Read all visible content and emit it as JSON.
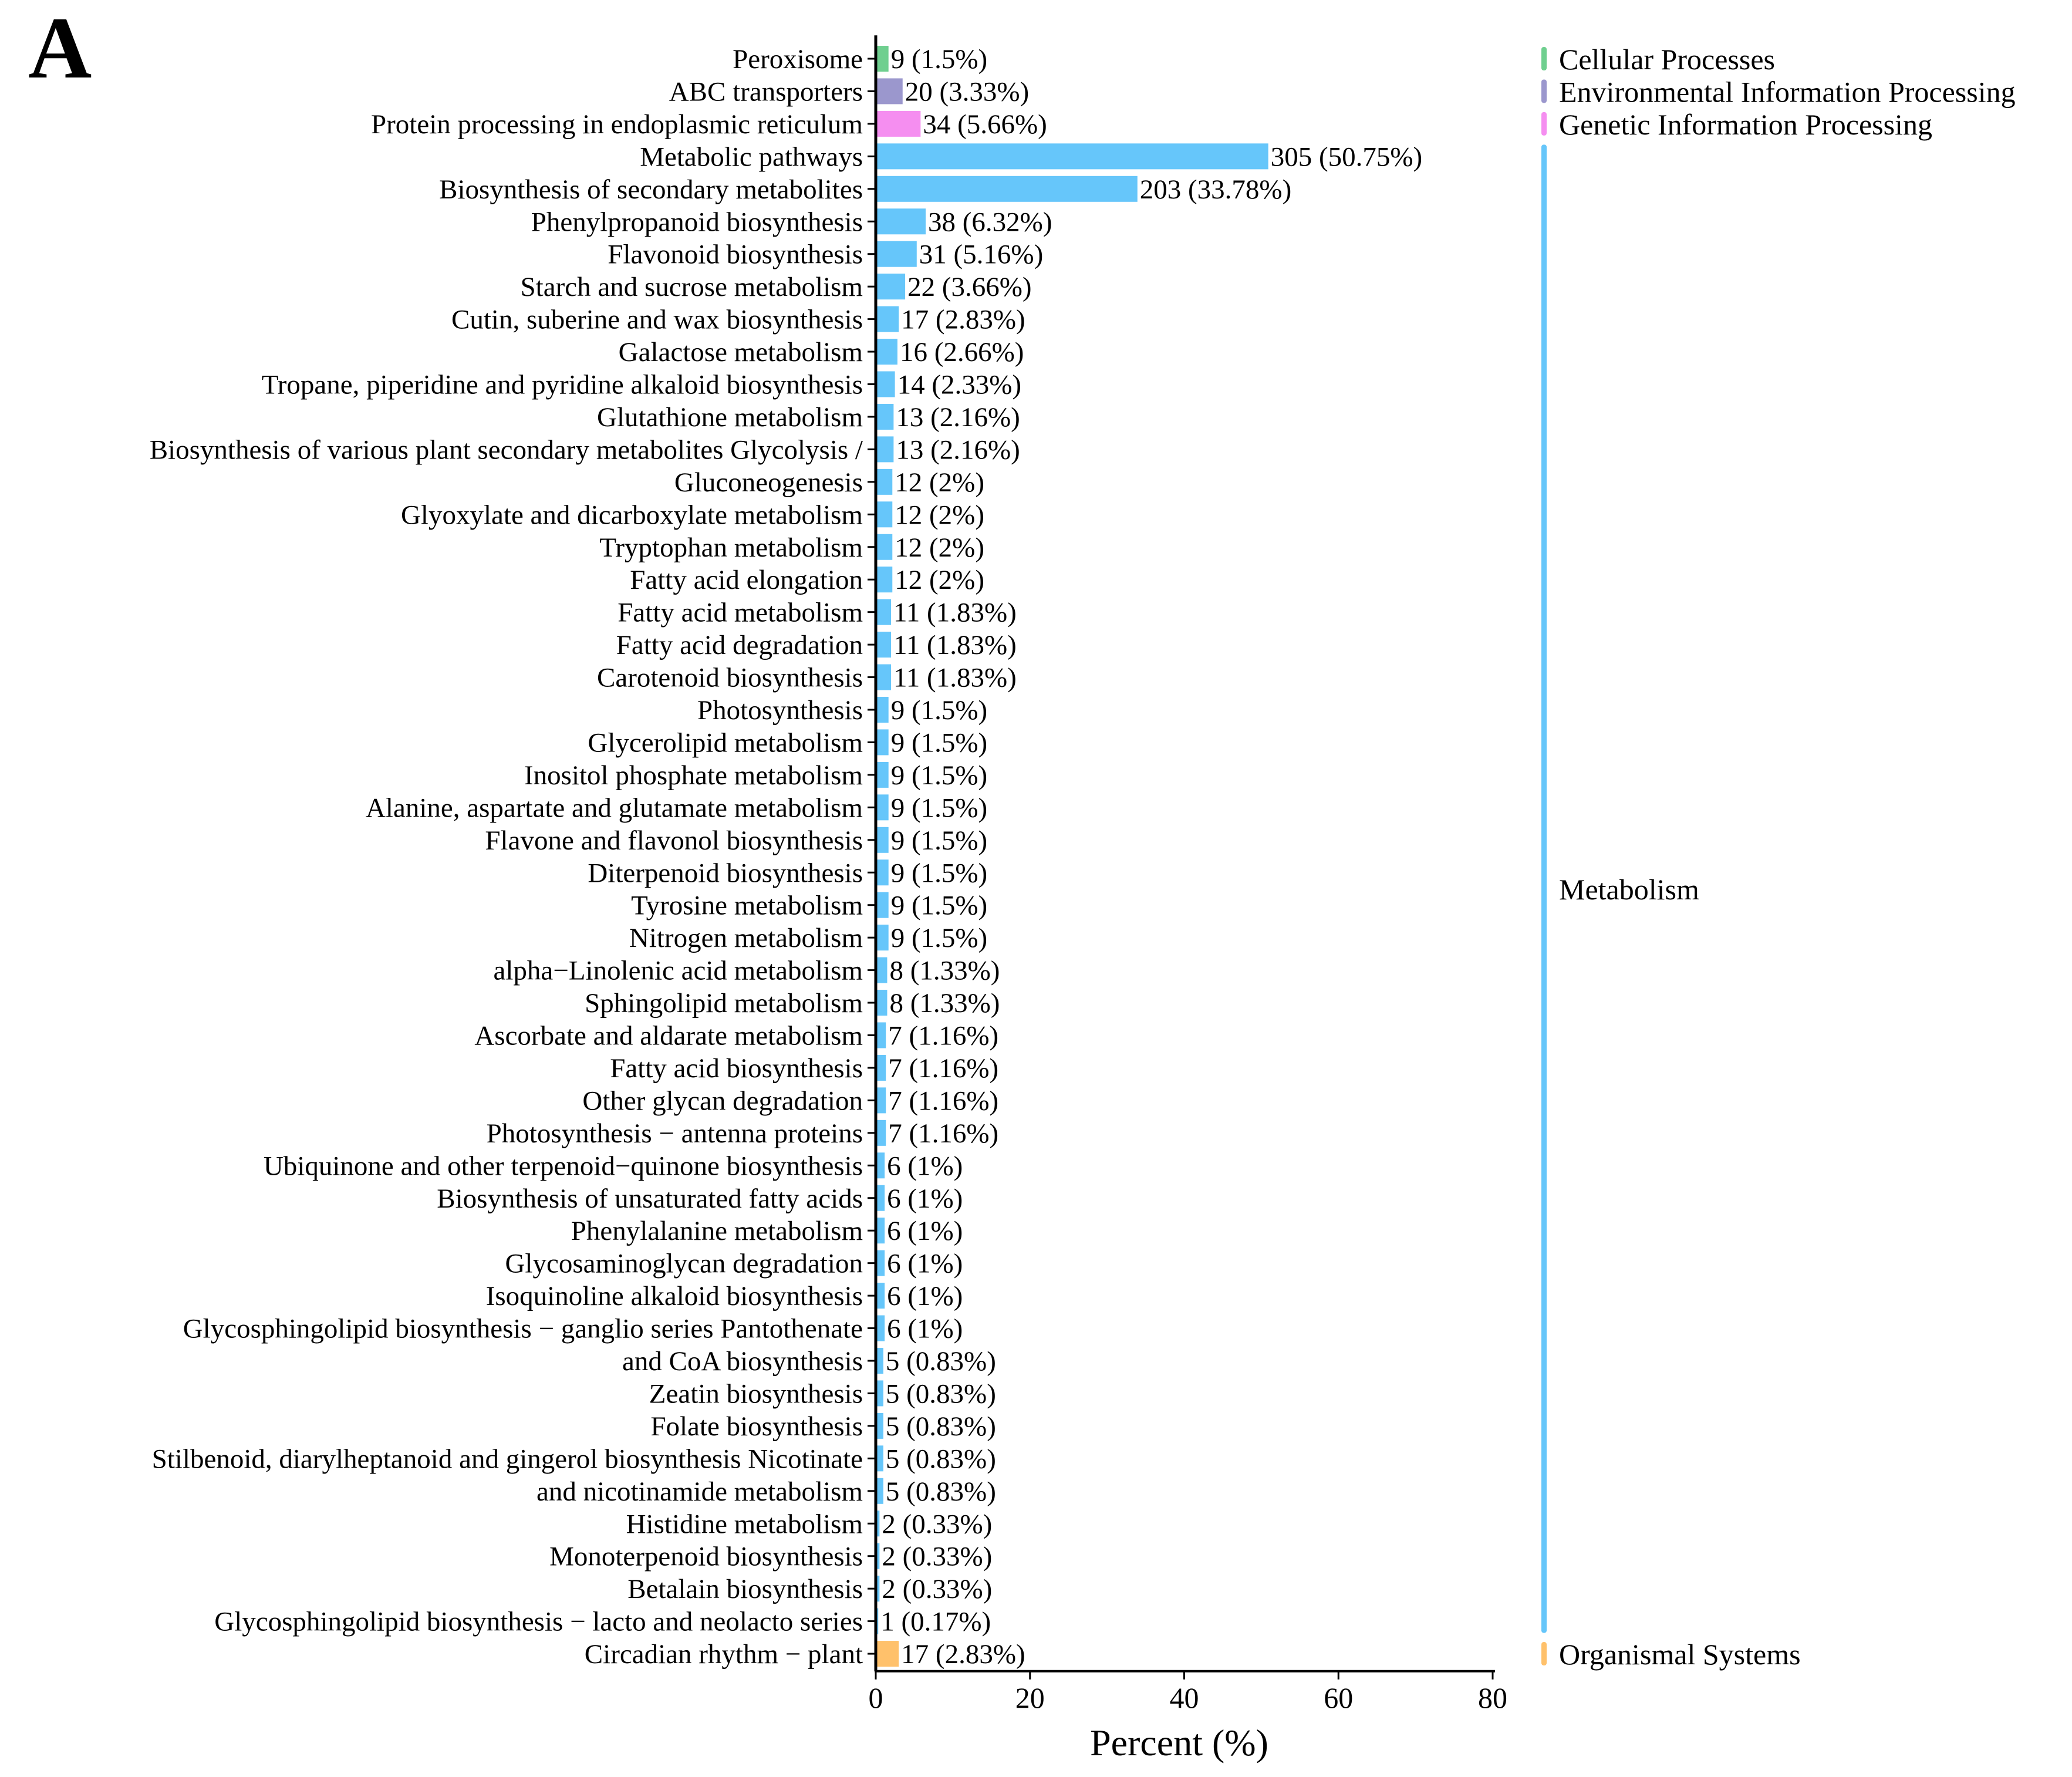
{
  "panel_label": "A",
  "chart_data": {
    "type": "bar",
    "orientation": "horizontal",
    "title": "",
    "xlabel": "Percent (%)",
    "ylabel": "",
    "xlim": [
      0,
      80
    ],
    "xticks": [
      "0",
      "20",
      "40",
      "60",
      "80"
    ],
    "grid": false,
    "legend_position": "right",
    "groups": [
      {
        "name": "Cellular Processes",
        "color": "#6fcf8f"
      },
      {
        "name": "Environmental Information Processing",
        "color": "#9b97cd"
      },
      {
        "name": "Genetic Information Processing",
        "color": "#f58ef0"
      },
      {
        "name": "Metabolism",
        "color": "#66c6fa"
      },
      {
        "name": "Organismal Systems",
        "color": "#ffc16b"
      }
    ],
    "bars": [
      {
        "label": "Peroxisome",
        "percent": 1.5,
        "value_label": "9 (1.5%)",
        "group": 0
      },
      {
        "label": "ABC transporters",
        "percent": 3.33,
        "value_label": "20 (3.33%)",
        "group": 1
      },
      {
        "label": "Protein processing in endoplasmic reticulum",
        "percent": 5.66,
        "value_label": "34 (5.66%)",
        "group": 2
      },
      {
        "label": "Metabolic pathways",
        "percent": 50.75,
        "value_label": "305 (50.75%)",
        "group": 3
      },
      {
        "label": "Biosynthesis of secondary metabolites",
        "percent": 33.78,
        "value_label": "203 (33.78%)",
        "group": 3
      },
      {
        "label": "Phenylpropanoid biosynthesis",
        "percent": 6.32,
        "value_label": "38 (6.32%)",
        "group": 3
      },
      {
        "label": "Flavonoid biosynthesis",
        "percent": 5.16,
        "value_label": "31 (5.16%)",
        "group": 3
      },
      {
        "label": "Starch and sucrose metabolism",
        "percent": 3.66,
        "value_label": "22 (3.66%)",
        "group": 3
      },
      {
        "label": "Cutin, suberine and wax biosynthesis",
        "percent": 2.83,
        "value_label": "17 (2.83%)",
        "group": 3
      },
      {
        "label": "Galactose metabolism",
        "percent": 2.66,
        "value_label": "16 (2.66%)",
        "group": 3
      },
      {
        "label": "Tropane, piperidine and pyridine alkaloid biosynthesis",
        "percent": 2.33,
        "value_label": "14  (2.33%)",
        "group": 3
      },
      {
        "label": "Glutathione metabolism",
        "percent": 2.16,
        "value_label": "13  (2.16%)",
        "group": 3
      },
      {
        "label": "Biosynthesis of various plant secondary metabolites Glycolysis /",
        "percent": 2.16,
        "value_label": "13 (2.16%)",
        "group": 3
      },
      {
        "label": "Gluconeogenesis",
        "percent": 2,
        "value_label": "12 (2%)",
        "group": 3
      },
      {
        "label": "Glyoxylate and dicarboxylate metabolism",
        "percent": 2,
        "value_label": "12 (2%)",
        "group": 3
      },
      {
        "label": "Tryptophan metabolism",
        "percent": 2,
        "value_label": "12 (2%)",
        "group": 3
      },
      {
        "label": "Fatty acid elongation",
        "percent": 2,
        "value_label": "12 (2%)",
        "group": 3
      },
      {
        "label": "Fatty acid metabolism",
        "percent": 1.83,
        "value_label": "11 (1.83%)",
        "group": 3
      },
      {
        "label": "Fatty acid degradation",
        "percent": 1.83,
        "value_label": "11 (1.83%)",
        "group": 3
      },
      {
        "label": "Carotenoid biosynthesis",
        "percent": 1.83,
        "value_label": "11 (1.83%)",
        "group": 3
      },
      {
        "label": "Photosynthesis",
        "percent": 1.5,
        "value_label": "9 (1.5%)",
        "group": 3
      },
      {
        "label": "Glycerolipid metabolism",
        "percent": 1.5,
        "value_label": "9 (1.5%)",
        "group": 3
      },
      {
        "label": "Inositol phosphate metabolism",
        "percent": 1.5,
        "value_label": "9 (1.5%)",
        "group": 3
      },
      {
        "label": "Alanine, aspartate and glutamate metabolism",
        "percent": 1.5,
        "value_label": "9 (1.5%)",
        "group": 3
      },
      {
        "label": "Flavone and flavonol biosynthesis",
        "percent": 1.5,
        "value_label": "9 (1.5%)",
        "group": 3
      },
      {
        "label": "Diterpenoid biosynthesis",
        "percent": 1.5,
        "value_label": "9 (1.5%)",
        "group": 3
      },
      {
        "label": "Tyrosine metabolism",
        "percent": 1.5,
        "value_label": "9 (1.5%)",
        "group": 3
      },
      {
        "label": "Nitrogen metabolism",
        "percent": 1.5,
        "value_label": "9 (1.5%)",
        "group": 3
      },
      {
        "label": "alpha−Linolenic acid metabolism",
        "percent": 1.33,
        "value_label": "8 (1.33%)",
        "group": 3
      },
      {
        "label": "Sphingolipid metabolism",
        "percent": 1.33,
        "value_label": "8 (1.33%)",
        "group": 3
      },
      {
        "label": "Ascorbate and aldarate metabolism",
        "percent": 1.16,
        "value_label": "7 (1.16%)",
        "group": 3
      },
      {
        "label": "Fatty acid biosynthesis",
        "percent": 1.16,
        "value_label": "7 (1.16%)",
        "group": 3
      },
      {
        "label": "Other glycan degradation",
        "percent": 1.16,
        "value_label": "7 (1.16%)",
        "group": 3
      },
      {
        "label": "Photosynthesis − antenna proteins",
        "percent": 1.16,
        "value_label": "7 (1.16%)",
        "group": 3
      },
      {
        "label": "Ubiquinone and other terpenoid−quinone biosynthesis",
        "percent": 1,
        "value_label": "6  (1%)",
        "group": 3
      },
      {
        "label": "Biosynthesis of unsaturated fatty acids",
        "percent": 1,
        "value_label": "6  (1%)",
        "group": 3
      },
      {
        "label": "Phenylalanine metabolism",
        "percent": 1,
        "value_label": "6  (1%)",
        "group": 3
      },
      {
        "label": "Glycosaminoglycan degradation",
        "percent": 1,
        "value_label": "6  (1%)",
        "group": 3
      },
      {
        "label": "Isoquinoline alkaloid biosynthesis",
        "percent": 1,
        "value_label": "6  (1%)",
        "group": 3
      },
      {
        "label": "Glycosphingolipid biosynthesis − ganglio series Pantothenate",
        "percent": 1,
        "value_label": "6 (1%)",
        "group": 3
      },
      {
        "label": "and CoA biosynthesis",
        "percent": 0.83,
        "value_label": "5 (0.83%)",
        "group": 3
      },
      {
        "label": "Zeatin biosynthesis",
        "percent": 0.83,
        "value_label": "5 (0.83%)",
        "group": 3
      },
      {
        "label": "Folate biosynthesis",
        "percent": 0.83,
        "value_label": "5 (0.83%)",
        "group": 3
      },
      {
        "label": "Stilbenoid, diarylheptanoid and gingerol biosynthesis Nicotinate",
        "percent": 0.83,
        "value_label": "5 (0.83%)",
        "group": 3
      },
      {
        "label": "and nicotinamide metabolism",
        "percent": 0.83,
        "value_label": "5 (0.83%)",
        "group": 3
      },
      {
        "label": "Histidine metabolism",
        "percent": 0.33,
        "value_label": "2  (0.33%)",
        "group": 3
      },
      {
        "label": "Monoterpenoid biosynthesis",
        "percent": 0.33,
        "value_label": "2  (0.33%)",
        "group": 3
      },
      {
        "label": "Betalain biosynthesis",
        "percent": 0.33,
        "value_label": "2  (0.33%)",
        "group": 3
      },
      {
        "label": "Glycosphingolipid biosynthesis − lacto and neolacto series",
        "percent": 0.17,
        "value_label": "1  (0.17%)",
        "group": 3
      },
      {
        "label": "Circadian rhythm − plant",
        "percent": 2.83,
        "value_label": "17 (2.83%)",
        "group": 4
      }
    ]
  }
}
